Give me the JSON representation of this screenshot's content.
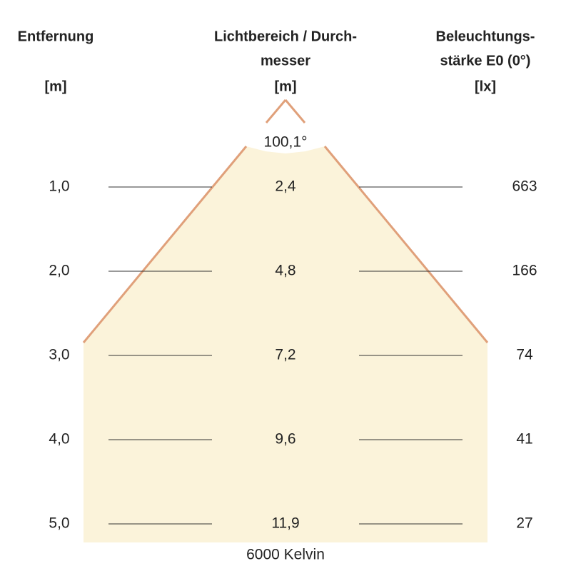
{
  "header": {
    "distance": {
      "title": "Entfernung",
      "unit": "[m]"
    },
    "diameter": {
      "title_line1": "Lichtbereich / Durch-",
      "title_line2": "messer",
      "unit": "[m]"
    },
    "illuminance": {
      "title_line1": "Beleuchtungs-",
      "title_line2": "stärke E0 (0°)",
      "unit": "[lx]"
    }
  },
  "angle": "100,1°",
  "rows": [
    [
      "1,0",
      "2,4",
      "663"
    ],
    [
      "2,0",
      "4,8",
      "166"
    ],
    [
      "3,0",
      "7,2",
      "74"
    ],
    [
      "4,0",
      "9,6",
      "41"
    ],
    [
      "5,0",
      "11,9",
      "27"
    ]
  ],
  "footer": "6000 Kelvin"
}
